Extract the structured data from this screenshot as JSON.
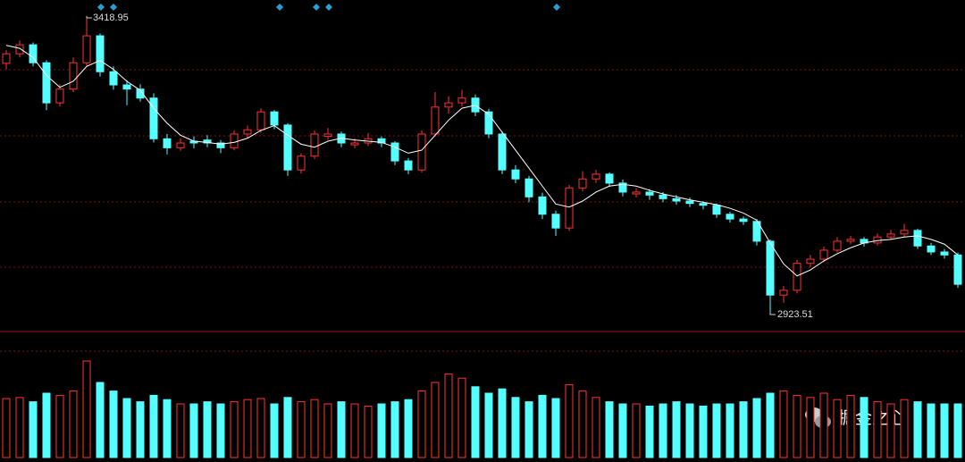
{
  "chart_data": {
    "type": "candlestick",
    "up_color": "#ff3232",
    "down_color": "#54ffff",
    "ma_color": "#ffffff",
    "ylim": [
      2893.6,
      3445.8
    ],
    "volume_lim": [
      0,
      100
    ],
    "candles": [
      [
        3340,
        3362,
        3330,
        3356
      ],
      [
        3356,
        3378,
        3350,
        3371
      ],
      [
        3371,
        3375,
        3335,
        3341
      ],
      [
        3341,
        3345,
        3262,
        3274
      ],
      [
        3274,
        3305,
        3268,
        3297
      ],
      [
        3297,
        3350,
        3292,
        3341
      ],
      [
        3341,
        3418.95,
        3336,
        3386
      ],
      [
        3386,
        3390,
        3318,
        3326
      ],
      [
        3326,
        3335,
        3296,
        3304
      ],
      [
        3304,
        3312,
        3270,
        3297
      ],
      [
        3297,
        3305,
        3276,
        3282
      ],
      [
        3282,
        3290,
        3208,
        3214
      ],
      [
        3214,
        3222,
        3188,
        3199
      ],
      [
        3199,
        3215,
        3194,
        3207
      ],
      [
        3210,
        3218,
        3198,
        3207
      ],
      [
        3212,
        3220,
        3200,
        3207
      ],
      [
        3207,
        3212,
        3190,
        3199
      ],
      [
        3199,
        3228,
        3195,
        3222
      ],
      [
        3222,
        3236,
        3216,
        3229
      ],
      [
        3229,
        3265,
        3224,
        3259
      ],
      [
        3259,
        3262,
        3230,
        3237
      ],
      [
        3237,
        3240,
        3152,
        3162
      ],
      [
        3162,
        3190,
        3156,
        3185
      ],
      [
        3185,
        3228,
        3180,
        3222
      ],
      [
        3218,
        3232,
        3212,
        3222
      ],
      [
        3222,
        3226,
        3200,
        3207
      ],
      [
        3204,
        3215,
        3198,
        3207
      ],
      [
        3207,
        3224,
        3202,
        3214
      ],
      [
        3214,
        3218,
        3200,
        3207
      ],
      [
        3207,
        3210,
        3170,
        3177
      ],
      [
        3177,
        3182,
        3155,
        3162
      ],
      [
        3162,
        3228,
        3158,
        3222
      ],
      [
        3222,
        3292,
        3218,
        3267
      ],
      [
        3267,
        3285,
        3256,
        3274
      ],
      [
        3274,
        3296,
        3268,
        3282
      ],
      [
        3282,
        3288,
        3252,
        3259
      ],
      [
        3259,
        3264,
        3215,
        3222
      ],
      [
        3222,
        3226,
        3155,
        3162
      ],
      [
        3162,
        3170,
        3140,
        3147
      ],
      [
        3147,
        3152,
        3108,
        3117
      ],
      [
        3117,
        3124,
        3080,
        3088
      ],
      [
        3088,
        3094,
        3052,
        3065
      ],
      [
        3065,
        3137,
        3060,
        3132
      ],
      [
        3132,
        3160,
        3126,
        3147
      ],
      [
        3147,
        3162,
        3140,
        3155
      ],
      [
        3155,
        3158,
        3134,
        3140
      ],
      [
        3140,
        3146,
        3118,
        3125
      ],
      [
        3122,
        3132,
        3116,
        3125
      ],
      [
        3125,
        3130,
        3112,
        3120
      ],
      [
        3120,
        3125,
        3108,
        3114
      ],
      [
        3114,
        3120,
        3104,
        3110
      ],
      [
        3110,
        3116,
        3100,
        3106
      ],
      [
        3106,
        3110,
        3096,
        3103
      ],
      [
        3103,
        3106,
        3082,
        3088
      ],
      [
        3088,
        3092,
        3074,
        3080
      ],
      [
        3080,
        3084,
        3070,
        3076
      ],
      [
        3076,
        3080,
        3036,
        3043
      ],
      [
        3043,
        3046,
        2923.51,
        2953
      ],
      [
        2953,
        2968,
        2940,
        2961
      ],
      [
        2961,
        3012,
        2956,
        3006
      ],
      [
        3006,
        3020,
        3000,
        3013
      ],
      [
        3013,
        3034,
        3008,
        3028
      ],
      [
        3028,
        3050,
        3024,
        3043
      ],
      [
        3043,
        3052,
        3038,
        3046
      ],
      [
        3046,
        3050,
        3034,
        3040
      ],
      [
        3040,
        3056,
        3036,
        3050
      ],
      [
        3050,
        3062,
        3046,
        3055
      ],
      [
        3055,
        3072,
        3050,
        3061
      ],
      [
        3061,
        3064,
        3030,
        3035
      ],
      [
        3035,
        3040,
        3020,
        3025
      ],
      [
        3025,
        3030,
        3014,
        3020
      ],
      [
        3020,
        3024,
        2965,
        2971
      ]
    ],
    "ma": [
      3370,
      3365,
      3350,
      3320,
      3300,
      3310,
      3335,
      3345,
      3330,
      3310,
      3295,
      3265,
      3240,
      3220,
      3210,
      3208,
      3205,
      3208,
      3215,
      3228,
      3236,
      3220,
      3205,
      3200,
      3210,
      3215,
      3212,
      3210,
      3208,
      3200,
      3190,
      3195,
      3220,
      3245,
      3265,
      3270,
      3255,
      3225,
      3195,
      3165,
      3135,
      3105,
      3100,
      3110,
      3125,
      3135,
      3138,
      3135,
      3128,
      3122,
      3117,
      3112,
      3108,
      3104,
      3098,
      3090,
      3078,
      3040,
      3005,
      2985,
      2995,
      3010,
      3022,
      3032,
      3040,
      3044,
      3046,
      3050,
      3052,
      3046,
      3038,
      3020
    ],
    "volume": [
      55,
      56,
      52,
      60,
      58,
      62,
      90,
      70,
      62,
      55,
      52,
      58,
      54,
      50,
      50,
      52,
      50,
      52,
      54,
      55,
      50,
      56,
      52,
      54,
      50,
      52,
      50,
      48,
      50,
      52,
      54,
      62,
      70,
      78,
      74,
      66,
      60,
      64,
      56,
      52,
      58,
      55,
      68,
      62,
      56,
      52,
      50,
      50,
      48,
      50,
      52,
      50,
      48,
      50,
      50,
      52,
      55,
      60,
      62,
      58,
      56,
      60,
      54,
      58,
      56,
      52,
      50,
      54,
      52,
      50,
      50,
      50
    ]
  },
  "watermark": "掘金之心"
}
